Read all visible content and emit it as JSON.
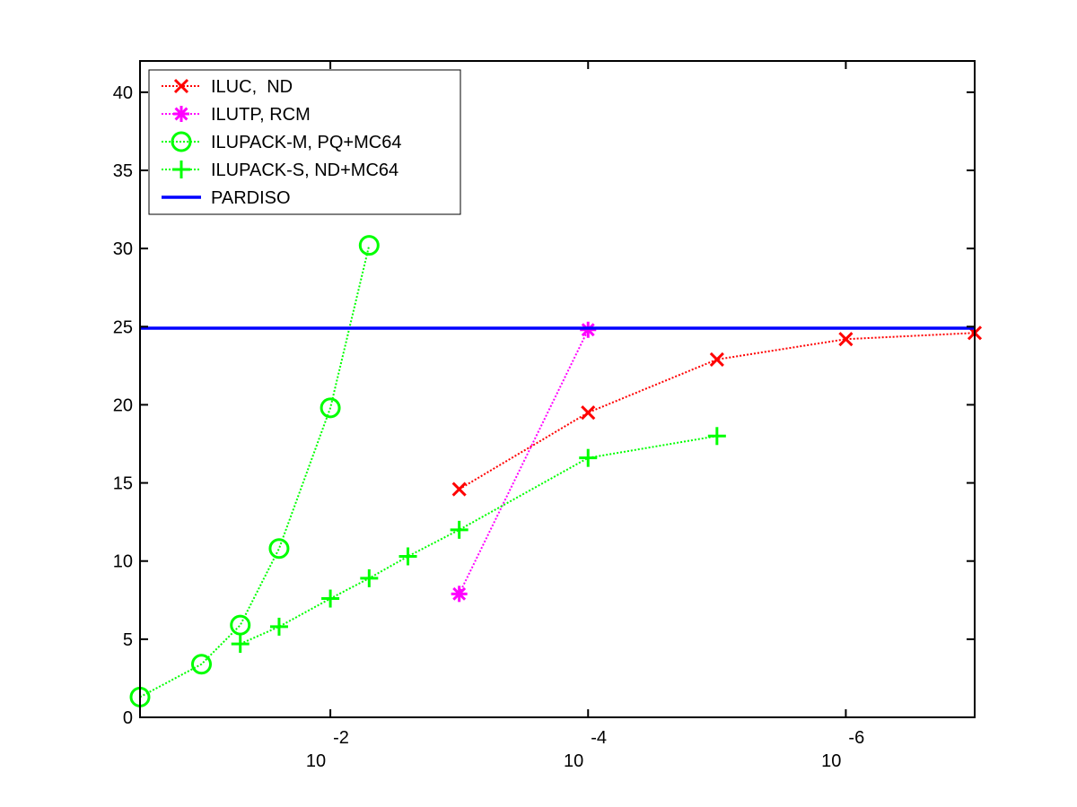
{
  "chart_data": {
    "type": "line",
    "title": "",
    "xlabel": "",
    "ylabel": "",
    "x_scale": "log10",
    "x_reversed": true,
    "xlim": [
      0.3,
      1e-07
    ],
    "ylim": [
      0,
      42
    ],
    "grid": false,
    "legend_position": "top-left",
    "x_ticks": [
      {
        "value": 0.01,
        "base": "10",
        "exponent": "-2"
      },
      {
        "value": 0.0001,
        "base": "10",
        "exponent": "-4"
      },
      {
        "value": 1e-06,
        "base": "10",
        "exponent": "-6"
      }
    ],
    "y_ticks": [
      0,
      5,
      10,
      15,
      20,
      25,
      30,
      35,
      40
    ],
    "series": [
      {
        "name": "ILUC,  ND",
        "color": "#ff0000",
        "marker": "x",
        "line_style": "dotted",
        "points": [
          {
            "x": 0.001,
            "y": 14.6
          },
          {
            "x": 0.0001,
            "y": 19.5
          },
          {
            "x": 1e-05,
            "y": 22.9
          },
          {
            "x": 1e-06,
            "y": 24.2
          },
          {
            "x": 1e-07,
            "y": 24.6
          }
        ]
      },
      {
        "name": "ILUTP, RCM",
        "color": "#ff00ff",
        "marker": "asterisk",
        "line_style": "dotted",
        "points": [
          {
            "x": 0.001,
            "y": 7.9
          },
          {
            "x": 0.0001,
            "y": 24.8
          }
        ]
      },
      {
        "name": "ILUPACK-M, PQ+MC64",
        "color": "#00ff00",
        "marker": "circle",
        "line_style": "dotted",
        "points": [
          {
            "x": 0.3,
            "y": 1.3
          },
          {
            "x": 0.1,
            "y": 3.4
          },
          {
            "x": 0.05,
            "y": 5.9
          },
          {
            "x": 0.025,
            "y": 10.8
          },
          {
            "x": 0.01,
            "y": 19.8
          },
          {
            "x": 0.005,
            "y": 30.2
          }
        ]
      },
      {
        "name": "ILUPACK-S, ND+MC64",
        "color": "#00ff00",
        "marker": "plus",
        "line_style": "dotted",
        "points": [
          {
            "x": 0.05,
            "y": 4.7
          },
          {
            "x": 0.025,
            "y": 5.8
          },
          {
            "x": 0.01,
            "y": 7.6
          },
          {
            "x": 0.005,
            "y": 8.9
          },
          {
            "x": 0.0025,
            "y": 10.3
          },
          {
            "x": 0.001,
            "y": 12.0
          },
          {
            "x": 0.0001,
            "y": 16.6
          },
          {
            "x": 1e-05,
            "y": 18.0
          }
        ]
      },
      {
        "name": "PARDISO",
        "color": "#0000ff",
        "marker": "none",
        "line_style": "solid",
        "constant_y": 24.9
      }
    ]
  }
}
